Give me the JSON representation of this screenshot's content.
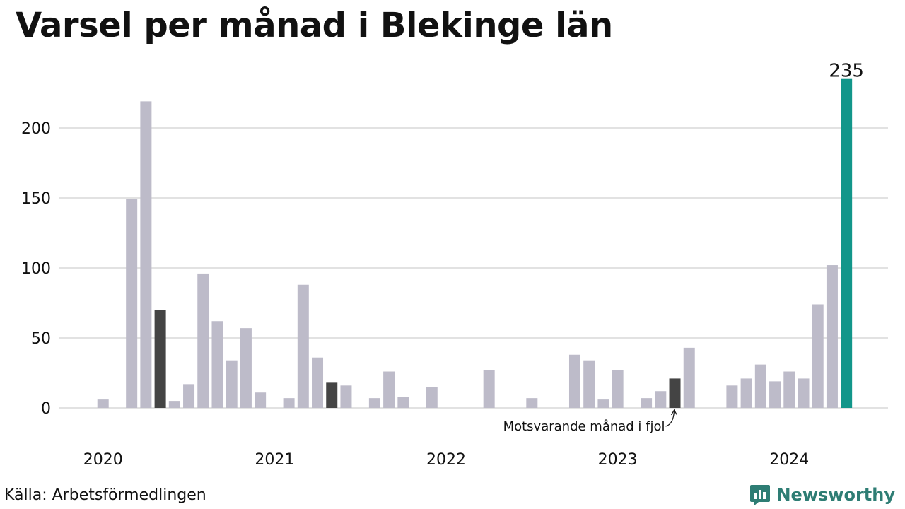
{
  "header": {
    "title": "Varsel per månad i Blekinge län"
  },
  "footer": {
    "source": "Källa: Arbetsförmedlingen",
    "brand": "Newsworthy"
  },
  "colors": {
    "default": "#bdbbc9",
    "highlight": "#444444",
    "current": "#12968a",
    "grid": "#e2e2e2",
    "brand": "#2e7d74"
  },
  "icons": {
    "brand_logo": "bar-chart-speech-bubble-icon"
  },
  "chart_data": {
    "type": "bar",
    "title": "Varsel per månad i Blekinge län",
    "xlabel": "",
    "ylabel": "",
    "ylim": [
      0,
      240
    ],
    "yticks": [
      0,
      50,
      100,
      150,
      200
    ],
    "grid": true,
    "x_year_labels": [
      "2020",
      "2021",
      "2022",
      "2023",
      "2024"
    ],
    "start": "2020-01",
    "values": [
      0,
      6,
      0,
      149,
      219,
      70,
      5,
      17,
      96,
      62,
      34,
      57,
      11,
      0,
      7,
      88,
      36,
      18,
      16,
      0,
      7,
      26,
      8,
      0,
      15,
      0,
      0,
      0,
      27,
      0,
      0,
      7,
      0,
      0,
      38,
      34,
      6,
      27,
      0,
      7,
      12,
      21,
      43,
      0,
      0,
      16,
      21,
      31,
      19,
      26,
      21,
      74,
      102,
      235
    ],
    "highlight_indices": [
      5,
      17,
      41
    ],
    "current_index": 53,
    "current_label": "235",
    "annotation": {
      "text": "Motsvarande månad i fjol",
      "target_index": 41
    }
  }
}
